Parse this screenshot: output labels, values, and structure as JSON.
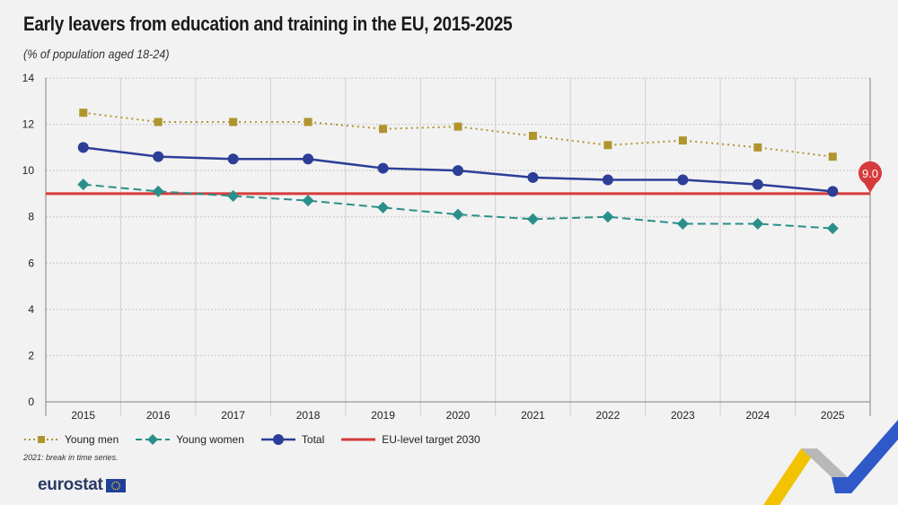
{
  "title": "Early leavers from education and training in the EU, 2015-2025",
  "subtitle": "(% of population aged 18-24)",
  "note": "2021: break in time series.",
  "logo_text": "eurostat",
  "colors": {
    "young_men": "#b0952e",
    "young_women": "#2a8f8a",
    "total": "#2c3e96",
    "target": "#d63b3b",
    "grid": "#c4c4c4",
    "axis": "#808080"
  },
  "legend": [
    {
      "key": "young_men",
      "label": "Young men",
      "style": "dotted",
      "marker": "square"
    },
    {
      "key": "young_women",
      "label": "Young women",
      "style": "dashed",
      "marker": "diamond"
    },
    {
      "key": "total",
      "label": "Total",
      "style": "solid",
      "marker": "circle"
    },
    {
      "key": "target",
      "label": "EU-level target 2030",
      "style": "solid",
      "marker": "none"
    }
  ],
  "chart_data": {
    "type": "line",
    "title": "Early leavers from education and training in the EU, 2015-2025",
    "subtitle": "(% of population aged 18-24)",
    "x": [
      "2015",
      "2016",
      "2017",
      "2018",
      "2019",
      "2020",
      "2021",
      "2022",
      "2023",
      "2024",
      "2025"
    ],
    "y_ticks": [
      0,
      2,
      4,
      6,
      8,
      10,
      12,
      14
    ],
    "ylim": [
      0,
      14
    ],
    "grid": true,
    "legend_position": "bottom-left",
    "series": [
      {
        "key": "young_men",
        "name": "Young men",
        "values": [
          12.5,
          12.1,
          12.1,
          12.1,
          11.8,
          11.9,
          11.5,
          11.1,
          11.3,
          11.0,
          10.6
        ]
      },
      {
        "key": "young_women",
        "name": "Young women",
        "values": [
          9.4,
          9.1,
          8.9,
          8.7,
          8.4,
          8.1,
          7.9,
          8.0,
          7.7,
          7.7,
          7.5
        ]
      },
      {
        "key": "total",
        "name": "Total",
        "values": [
          11.0,
          10.6,
          10.5,
          10.5,
          10.1,
          10.0,
          9.7,
          9.6,
          9.6,
          9.4,
          9.1
        ]
      }
    ],
    "target": {
      "name": "EU-level target 2030",
      "value": 9.0,
      "label": "9.0"
    }
  }
}
